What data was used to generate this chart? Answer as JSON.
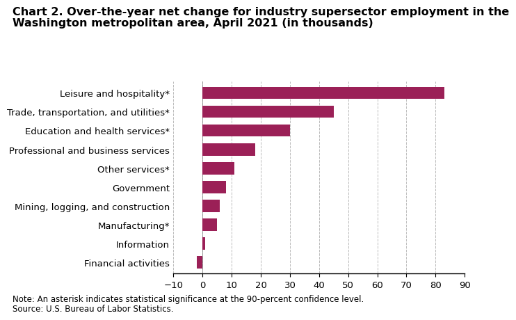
{
  "title_line1": "Chart 2. Over-the-year net change for industry supersector employment in the",
  "title_line2": "Washington metropolitan area, April 2021 (in thousands)",
  "categories": [
    "Financial activities",
    "Information",
    "Manufacturing*",
    "Mining, logging, and construction",
    "Government",
    "Other services*",
    "Professional and business services",
    "Education and health services*",
    "Trade, transportation, and utilities*",
    "Leisure and hospitality*"
  ],
  "values": [
    -2.0,
    1.0,
    5.0,
    6.0,
    8.0,
    11.0,
    18.0,
    30.0,
    45.0,
    83.0
  ],
  "bar_color": "#9B2057",
  "xlim": [
    -10,
    90
  ],
  "xticks": [
    -10,
    0,
    10,
    20,
    30,
    40,
    50,
    60,
    70,
    80,
    90
  ],
  "grid_color": "#BBBBBB",
  "note_line1": "Note: An asterisk indicates statistical significance at the 90-percent confidence level.",
  "note_line2": "Source: U.S. Bureau of Labor Statistics.",
  "title_fontsize": 11.5,
  "label_fontsize": 9.5,
  "tick_fontsize": 9.5,
  "note_fontsize": 8.5,
  "background_color": "#FFFFFF"
}
